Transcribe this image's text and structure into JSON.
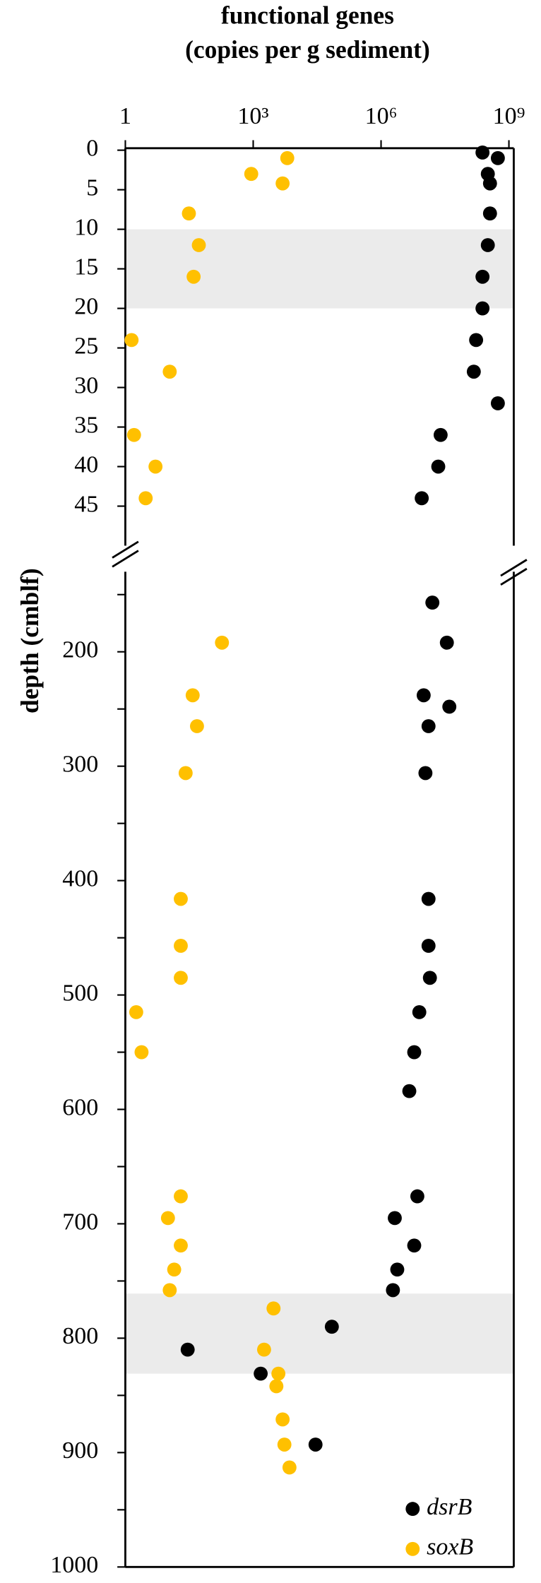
{
  "chart_data": [
    {
      "type": "scatter",
      "title": "functional genes",
      "subtitle": "(copies per g sediment)",
      "y_label": "depth (cmblf)",
      "log_x": true,
      "xlim": [
        1,
        1300000000
      ],
      "xticks": [
        1,
        {
          "value": 1000,
          "label": "10³"
        },
        {
          "value": 1000000,
          "label": "10⁶"
        },
        {
          "value": 1000000000,
          "label": "10⁹"
        }
      ],
      "ylim": [
        0,
        50
      ],
      "yticks": [
        0,
        5,
        10,
        15,
        20,
        25,
        30,
        35,
        40,
        45
      ],
      "shaded_band": [
        10,
        20
      ],
      "band_color": "#ebebeb",
      "series": [
        {
          "color": "#000000",
          "x": [
            240000000,
            550000000,
            320000000,
            360000000,
            360000000,
            320000000,
            240000000,
            240000000,
            170000000,
            150000000,
            550000000,
            25000000,
            22000000,
            9000000
          ],
          "y": [
            0.3,
            1,
            3,
            4.2,
            8,
            12,
            16,
            20,
            24,
            28,
            32,
            36,
            40,
            44
          ]
        },
        {
          "color": "#ffc000",
          "x": [
            6300,
            900,
            4900,
            31,
            53,
            40,
            1.4,
            11,
            1.6,
            5.1,
            3
          ],
          "y": [
            1,
            3,
            4.2,
            8,
            12,
            16,
            24,
            28,
            36,
            40,
            44
          ]
        }
      ]
    },
    {
      "type": "scatter",
      "log_x": true,
      "xlim": [
        1,
        1300000000
      ],
      "ylim": [
        130,
        1000
      ],
      "yticks": [
        200,
        300,
        400,
        500,
        600,
        700,
        800,
        900,
        1000
      ],
      "yminorticks": [
        150,
        250,
        350,
        450,
        550,
        650,
        750,
        850,
        950
      ],
      "shaded_band": [
        761,
        831
      ],
      "band_color": "#ebebeb",
      "series": [
        {
          "name": "dsrB",
          "color": "#000000",
          "x": [
            16000000,
            35000000,
            10000000,
            40000000,
            13000000,
            11000000,
            13000000,
            13000000,
            14000000,
            7900000,
            6000000,
            4600000,
            7100000,
            2100000,
            6000000,
            2400000,
            1900000,
            70000,
            29,
            1500,
            29000
          ],
          "y": [
            157,
            192,
            238,
            248,
            265,
            306,
            416,
            457,
            485,
            515,
            550,
            584,
            676,
            695,
            719,
            740,
            758,
            790,
            810,
            831,
            893
          ]
        },
        {
          "name": "soxB",
          "color": "#ffc000",
          "x": [
            185,
            38,
            48,
            26,
            20,
            20,
            20,
            1.8,
            2.4,
            20,
            10,
            20,
            14,
            11,
            3000,
            1800,
            3900,
            3500,
            4900,
            5400,
            7100
          ],
          "y": [
            192,
            238,
            265,
            306,
            416,
            457,
            485,
            515,
            550,
            676,
            695,
            719,
            740,
            758,
            774,
            810,
            831,
            842,
            871,
            893,
            913
          ]
        }
      ]
    }
  ]
}
